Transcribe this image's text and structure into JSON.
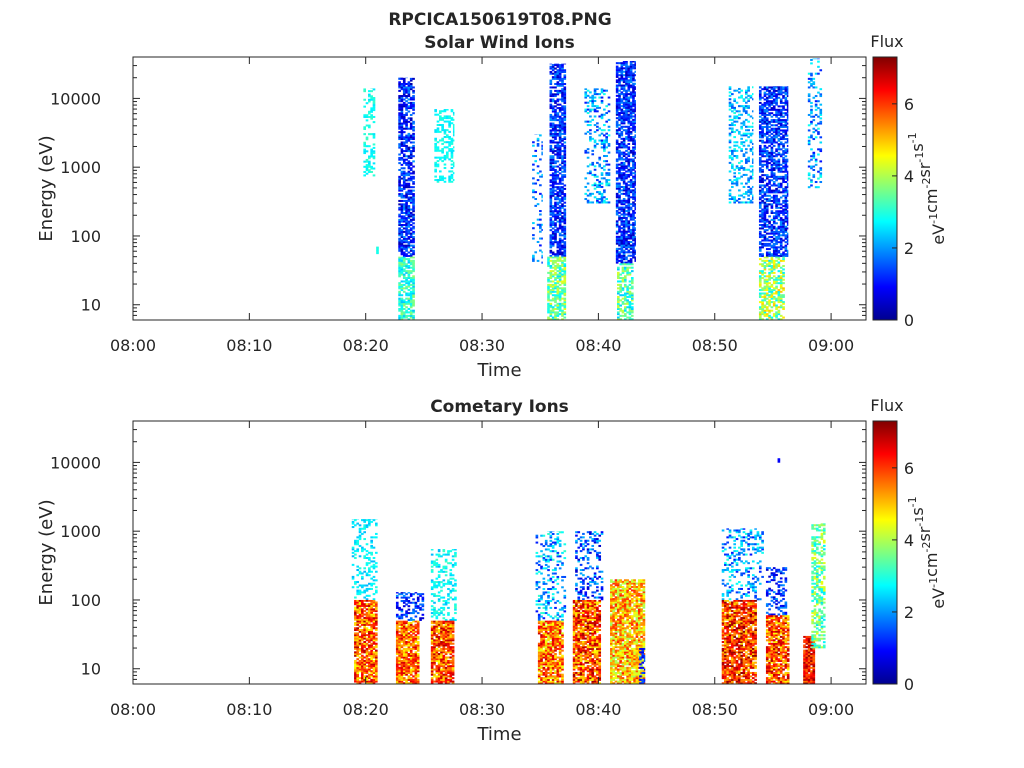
{
  "figure": {
    "title": "RPCICA150619T08.PNG"
  },
  "chart_data": [
    {
      "type": "heatmap",
      "title": "Solar Wind Ions",
      "xlabel": "Time",
      "ylabel": "Energy (eV)",
      "x_ticks": [
        "08:00",
        "08:10",
        "08:20",
        "08:30",
        "08:40",
        "08:50",
        "09:00"
      ],
      "x_range_minutes": [
        0,
        63
      ],
      "y_scale": "log",
      "y_ticks": [
        "10",
        "100",
        "1000",
        "10000"
      ],
      "y_range": [
        6,
        40000
      ],
      "colorbar": {
        "title": "Flux",
        "ticks": [
          "0",
          "2",
          "4",
          "6"
        ],
        "range": [
          0,
          7.3
        ],
        "units": "eV-1cm-2sr-1s-1",
        "colormap": "jet"
      },
      "bursts": [
        {
          "t": [
            19.8,
            20.8
          ],
          "e": [
            700,
            14000
          ],
          "flux": [
            2.5,
            3.2
          ],
          "density": 0.35
        },
        {
          "t": [
            20.9,
            21.1
          ],
          "e": [
            55,
            70
          ],
          "flux": [
            2.8,
            3
          ],
          "density": 1
        },
        {
          "t": [
            22.8,
            24.2
          ],
          "e": [
            50,
            20000
          ],
          "flux": [
            0.3,
            2
          ],
          "density": 0.7
        },
        {
          "t": [
            22.8,
            24.2
          ],
          "e": [
            6,
            50
          ],
          "flux": [
            2.3,
            3.8
          ],
          "density": 0.75
        },
        {
          "t": [
            25.9,
            27.6
          ],
          "e": [
            600,
            7000
          ],
          "flux": [
            2.5,
            3
          ],
          "density": 0.4
        },
        {
          "t": [
            34.3,
            35.2
          ],
          "e": [
            40,
            3000
          ],
          "flux": [
            1,
            2.5
          ],
          "density": 0.2
        },
        {
          "t": [
            35.8,
            37.2
          ],
          "e": [
            50,
            32000
          ],
          "flux": [
            0.4,
            2
          ],
          "density": 0.7
        },
        {
          "t": [
            35.6,
            37.2
          ],
          "e": [
            6,
            50
          ],
          "flux": [
            2.5,
            4.5
          ],
          "density": 0.7
        },
        {
          "t": [
            38.8,
            41.0
          ],
          "e": [
            300,
            14000
          ],
          "flux": [
            1,
            3
          ],
          "density": 0.3
        },
        {
          "t": [
            41.5,
            43.2
          ],
          "e": [
            40,
            35000
          ],
          "flux": [
            0.4,
            2
          ],
          "density": 0.7
        },
        {
          "t": [
            41.6,
            43.0
          ],
          "e": [
            6,
            40
          ],
          "flux": [
            2.3,
            4.3
          ],
          "density": 0.65
        },
        {
          "t": [
            51.2,
            53.3
          ],
          "e": [
            300,
            15000
          ],
          "flux": [
            1.5,
            3
          ],
          "density": 0.35
        },
        {
          "t": [
            53.8,
            56.3
          ],
          "e": [
            50,
            15000
          ],
          "flux": [
            0.4,
            2
          ],
          "density": 0.65
        },
        {
          "t": [
            53.8,
            56.0
          ],
          "e": [
            6,
            50
          ],
          "flux": [
            2.5,
            5
          ],
          "density": 0.6
        },
        {
          "t": [
            58.0,
            59.2
          ],
          "e": [
            500,
            38000
          ],
          "flux": [
            1,
            3
          ],
          "density": 0.3
        }
      ]
    },
    {
      "type": "heatmap",
      "title": "Cometary Ions",
      "xlabel": "Time",
      "ylabel": "Energy (eV)",
      "x_ticks": [
        "08:00",
        "08:10",
        "08:20",
        "08:30",
        "08:40",
        "08:50",
        "09:00"
      ],
      "x_range_minutes": [
        0,
        63
      ],
      "y_scale": "log",
      "y_ticks": [
        "10",
        "100",
        "1000",
        "10000"
      ],
      "y_range": [
        6,
        40000
      ],
      "colorbar": {
        "title": "Flux",
        "ticks": [
          "0",
          "2",
          "4",
          "6"
        ],
        "range": [
          0,
          7.3
        ],
        "units": "eV-1cm-2sr-1s-1",
        "colormap": "jet"
      },
      "bursts": [
        {
          "t": [
            18.8,
            21.0
          ],
          "e": [
            100,
            1500
          ],
          "flux": [
            2.2,
            3
          ],
          "density": 0.3
        },
        {
          "t": [
            19.0,
            21.0
          ],
          "e": [
            6,
            100
          ],
          "flux": [
            4.5,
            7
          ],
          "density": 0.85
        },
        {
          "t": [
            22.6,
            25.0
          ],
          "e": [
            50,
            130
          ],
          "flux": [
            0.5,
            2
          ],
          "density": 0.4
        },
        {
          "t": [
            22.6,
            24.6
          ],
          "e": [
            6,
            50
          ],
          "flux": [
            4.5,
            6.8
          ],
          "density": 0.85
        },
        {
          "t": [
            25.6,
            27.8
          ],
          "e": [
            50,
            550
          ],
          "flux": [
            2.2,
            3.2
          ],
          "density": 0.35
        },
        {
          "t": [
            25.6,
            27.6
          ],
          "e": [
            6,
            50
          ],
          "flux": [
            4.5,
            7
          ],
          "density": 0.85
        },
        {
          "t": [
            34.6,
            37.2
          ],
          "e": [
            50,
            1000
          ],
          "flux": [
            1,
            3.2
          ],
          "density": 0.25
        },
        {
          "t": [
            34.8,
            37.0
          ],
          "e": [
            6,
            50
          ],
          "flux": [
            4.2,
            6.8
          ],
          "density": 0.85
        },
        {
          "t": [
            38.0,
            40.4
          ],
          "e": [
            100,
            1000
          ],
          "flux": [
            0.5,
            2.5
          ],
          "density": 0.35
        },
        {
          "t": [
            37.8,
            40.2
          ],
          "e": [
            6,
            100
          ],
          "flux": [
            4.5,
            7.2
          ],
          "density": 0.85
        },
        {
          "t": [
            41.0,
            44.0
          ],
          "e": [
            6,
            200
          ],
          "flux": [
            3.8,
            6.2
          ],
          "density": 0.85
        },
        {
          "t": [
            43.5,
            44.0
          ],
          "e": [
            6,
            20
          ],
          "flux": [
            0.5,
            1.8
          ],
          "density": 0.5
        },
        {
          "t": [
            50.6,
            54.2
          ],
          "e": [
            100,
            1100
          ],
          "flux": [
            1,
            3
          ],
          "density": 0.25
        },
        {
          "t": [
            50.6,
            53.6
          ],
          "e": [
            6,
            100
          ],
          "flux": [
            4.8,
            7.3
          ],
          "density": 0.85
        },
        {
          "t": [
            54.4,
            56.2
          ],
          "e": [
            60,
            300
          ],
          "flux": [
            0.5,
            2
          ],
          "density": 0.4
        },
        {
          "t": [
            54.4,
            56.4
          ],
          "e": [
            6,
            60
          ],
          "flux": [
            4.5,
            7
          ],
          "density": 0.85
        },
        {
          "t": [
            55.4,
            55.6
          ],
          "e": [
            10000,
            11500
          ],
          "flux": [
            0.8,
            1
          ],
          "density": 1
        },
        {
          "t": [
            57.6,
            58.6
          ],
          "e": [
            6,
            30
          ],
          "flux": [
            5.5,
            7.2
          ],
          "density": 0.9
        },
        {
          "t": [
            58.3,
            59.5
          ],
          "e": [
            20,
            1300
          ],
          "flux": [
            2.5,
            4.5
          ],
          "density": 0.55
        }
      ]
    }
  ]
}
